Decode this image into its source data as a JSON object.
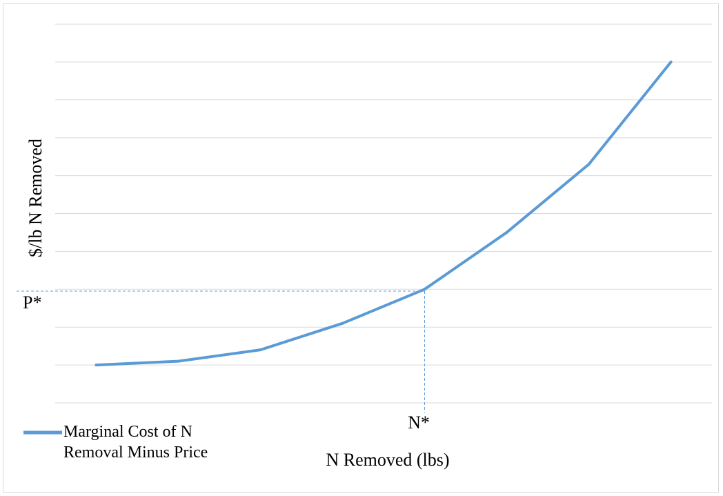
{
  "chart_data": {
    "type": "line",
    "title": "",
    "xlabel": "N Removed (lbs)",
    "ylabel": "$/lb N Removed",
    "x": [
      1,
      2,
      3,
      4,
      5,
      6,
      7,
      8
    ],
    "ylim": [
      0,
      10
    ],
    "grid": true,
    "legend_position": "bottom-left",
    "series": [
      {
        "name": "Marginal Cost of N Removal Minus Price",
        "color": "#5b9bd5",
        "values": [
          1.0,
          1.1,
          1.4,
          2.1,
          3.0,
          4.5,
          6.3,
          9.0
        ]
      }
    ],
    "annotations": {
      "x_marker": {
        "label": "N*",
        "x": 5
      },
      "y_marker": {
        "label": "P*",
        "y": 2.95
      }
    }
  }
}
